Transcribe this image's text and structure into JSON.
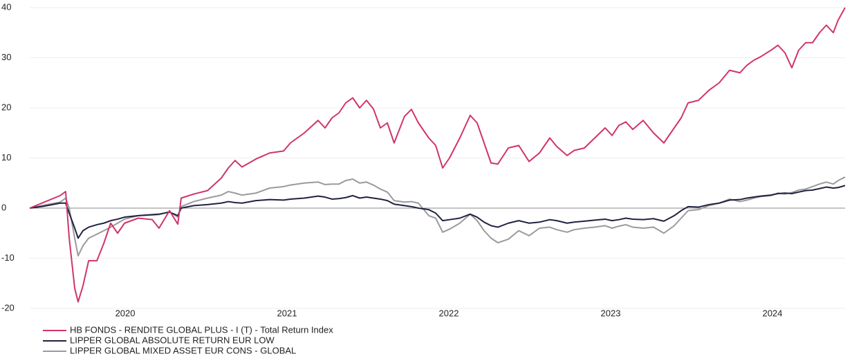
{
  "chart_data": {
    "type": "line",
    "x": [
      2019.41,
      2019.5,
      2019.598,
      2019.632,
      2019.654,
      2019.688,
      2019.709,
      2019.739,
      2019.774,
      2019.825,
      2019.868,
      2019.91,
      2019.953,
      2019.996,
      2020.081,
      2020.167,
      2020.209,
      2020.274,
      2020.325,
      2020.346,
      2020.423,
      2020.509,
      2020.594,
      2020.637,
      2020.679,
      2020.722,
      2020.808,
      2020.893,
      2020.979,
      2021.021,
      2021.107,
      2021.192,
      2021.235,
      2021.278,
      2021.321,
      2021.363,
      2021.406,
      2021.449,
      2021.491,
      2021.534,
      2021.577,
      2021.62,
      2021.662,
      2021.726,
      2021.769,
      2021.812,
      2021.876,
      2021.919,
      2021.962,
      2022.004,
      2022.068,
      2022.132,
      2022.175,
      2022.218,
      2022.261,
      2022.303,
      2022.368,
      2022.432,
      2022.496,
      2022.56,
      2022.624,
      2022.667,
      2022.731,
      2022.774,
      2022.838,
      2022.902,
      2022.966,
      2023.009,
      2023.051,
      2023.094,
      2023.137,
      2023.201,
      2023.265,
      2023.329,
      2023.393,
      2023.436,
      2023.479,
      2023.543,
      2023.607,
      2023.671,
      2023.735,
      2023.799,
      2023.842,
      2023.885,
      2023.927,
      2023.991,
      2024.034,
      2024.077,
      2024.12,
      2024.162,
      2024.205,
      2024.248,
      2024.291,
      2024.333,
      2024.376,
      2024.406,
      2024.449
    ],
    "series": [
      {
        "name": "HB FONDS - RENDITE GLOBAL PLUS - I (T) - Total Return Index",
        "color": "#d0336b",
        "values": [
          0,
          1.2,
          2.5,
          3.3,
          -6,
          -16,
          -18.7,
          -15.5,
          -10.5,
          -10.5,
          -7,
          -3,
          -5,
          -3,
          -2,
          -2.3,
          -4,
          -0.5,
          -3.2,
          2,
          2.8,
          3.5,
          6,
          8,
          9.5,
          8.2,
          9.8,
          11,
          11.4,
          13,
          15,
          17.5,
          16,
          18,
          19,
          21,
          22,
          20,
          21.5,
          19.8,
          16,
          17,
          13,
          18.3,
          19.7,
          17,
          14,
          12.5,
          8,
          10,
          14,
          18.5,
          17,
          13,
          9,
          8.8,
          12,
          12.5,
          9.3,
          11,
          14,
          12.3,
          10.5,
          11.5,
          12,
          14,
          16,
          14.5,
          16.5,
          17.2,
          15.7,
          17.5,
          15,
          13,
          16,
          18,
          21,
          21.5,
          23.5,
          25,
          27.5,
          27,
          28.5,
          29.5,
          30.2,
          31.5,
          32.5,
          31,
          28,
          31.5,
          33,
          33,
          35,
          36.5,
          35,
          37.5,
          40
        ]
      },
      {
        "name": "LIPPER GLOBAL ABSOLUTE RETURN EUR LOW",
        "color": "#1f2240",
        "values": [
          0,
          0.4,
          1,
          1,
          -1,
          -4,
          -6,
          -4.5,
          -3.8,
          -3.3,
          -3,
          -2.5,
          -2.2,
          -1.8,
          -1.5,
          -1.3,
          -1.2,
          -0.8,
          -1.5,
          0,
          0.5,
          0.7,
          1,
          1.3,
          1.1,
          1,
          1.5,
          1.7,
          1.6,
          1.8,
          2,
          2.4,
          2.2,
          1.8,
          1.9,
          2.1,
          2.5,
          2,
          2.2,
          2,
          1.8,
          1.5,
          0.8,
          0.5,
          0.3,
          0,
          -0.3,
          -1,
          -2.5,
          -2.3,
          -2,
          -1.2,
          -1.8,
          -2.8,
          -3.5,
          -3.8,
          -3,
          -2.5,
          -3,
          -2.8,
          -2.3,
          -2.5,
          -3,
          -2.8,
          -2.6,
          -2.4,
          -2.2,
          -2.5,
          -2.3,
          -2,
          -2.2,
          -2.3,
          -2.1,
          -2.6,
          -1.5,
          -0.5,
          0.3,
          0.2,
          0.7,
          1,
          1.6,
          1.7,
          2,
          2.2,
          2.4,
          2.6,
          2.9,
          3,
          2.9,
          3.2,
          3.5,
          3.6,
          3.9,
          4.2,
          4,
          4.1,
          4.5
        ]
      },
      {
        "name": "LIPPER GLOBAL MIXED ASSET EUR CONS - GLOBAL",
        "color": "#9a9a9a",
        "values": [
          0,
          0.6,
          1.2,
          2,
          0,
          -6,
          -9.5,
          -7.5,
          -6,
          -5.2,
          -4.5,
          -3.8,
          -3,
          -2.2,
          -1.5,
          -1.4,
          -1.3,
          -0.7,
          -1.8,
          0.3,
          1.3,
          2,
          2.6,
          3.3,
          3,
          2.6,
          3,
          4,
          4.3,
          4.6,
          5,
          5.2,
          4.7,
          4.8,
          4.8,
          5.5,
          5.8,
          5,
          5.2,
          4.6,
          3.8,
          3.2,
          1.5,
          1.2,
          1.3,
          1,
          -1.5,
          -2,
          -4.8,
          -4.2,
          -3,
          -1.2,
          -2.5,
          -4.5,
          -6,
          -6.9,
          -6.2,
          -4.5,
          -5.5,
          -4,
          -3.8,
          -4.3,
          -4.8,
          -4.3,
          -4,
          -3.8,
          -3.5,
          -4,
          -3.6,
          -3.3,
          -3.8,
          -4,
          -3.8,
          -5,
          -3.5,
          -2,
          -0.5,
          -0.3,
          0.5,
          1,
          1.8,
          1.3,
          1.6,
          2,
          2.3,
          2.5,
          3,
          2.8,
          3.1,
          3.6,
          3.8,
          4.3,
          4.8,
          5.2,
          4.8,
          5.5,
          6.2
        ]
      }
    ],
    "xlim": [
      2019.41,
      2024.449
    ],
    "xticks": [
      2020,
      2021,
      2022,
      2023,
      2024
    ],
    "ylim": [
      -20,
      40
    ],
    "yticks": [
      -20,
      -10,
      0,
      10,
      20,
      30,
      40
    ],
    "grid": true
  }
}
